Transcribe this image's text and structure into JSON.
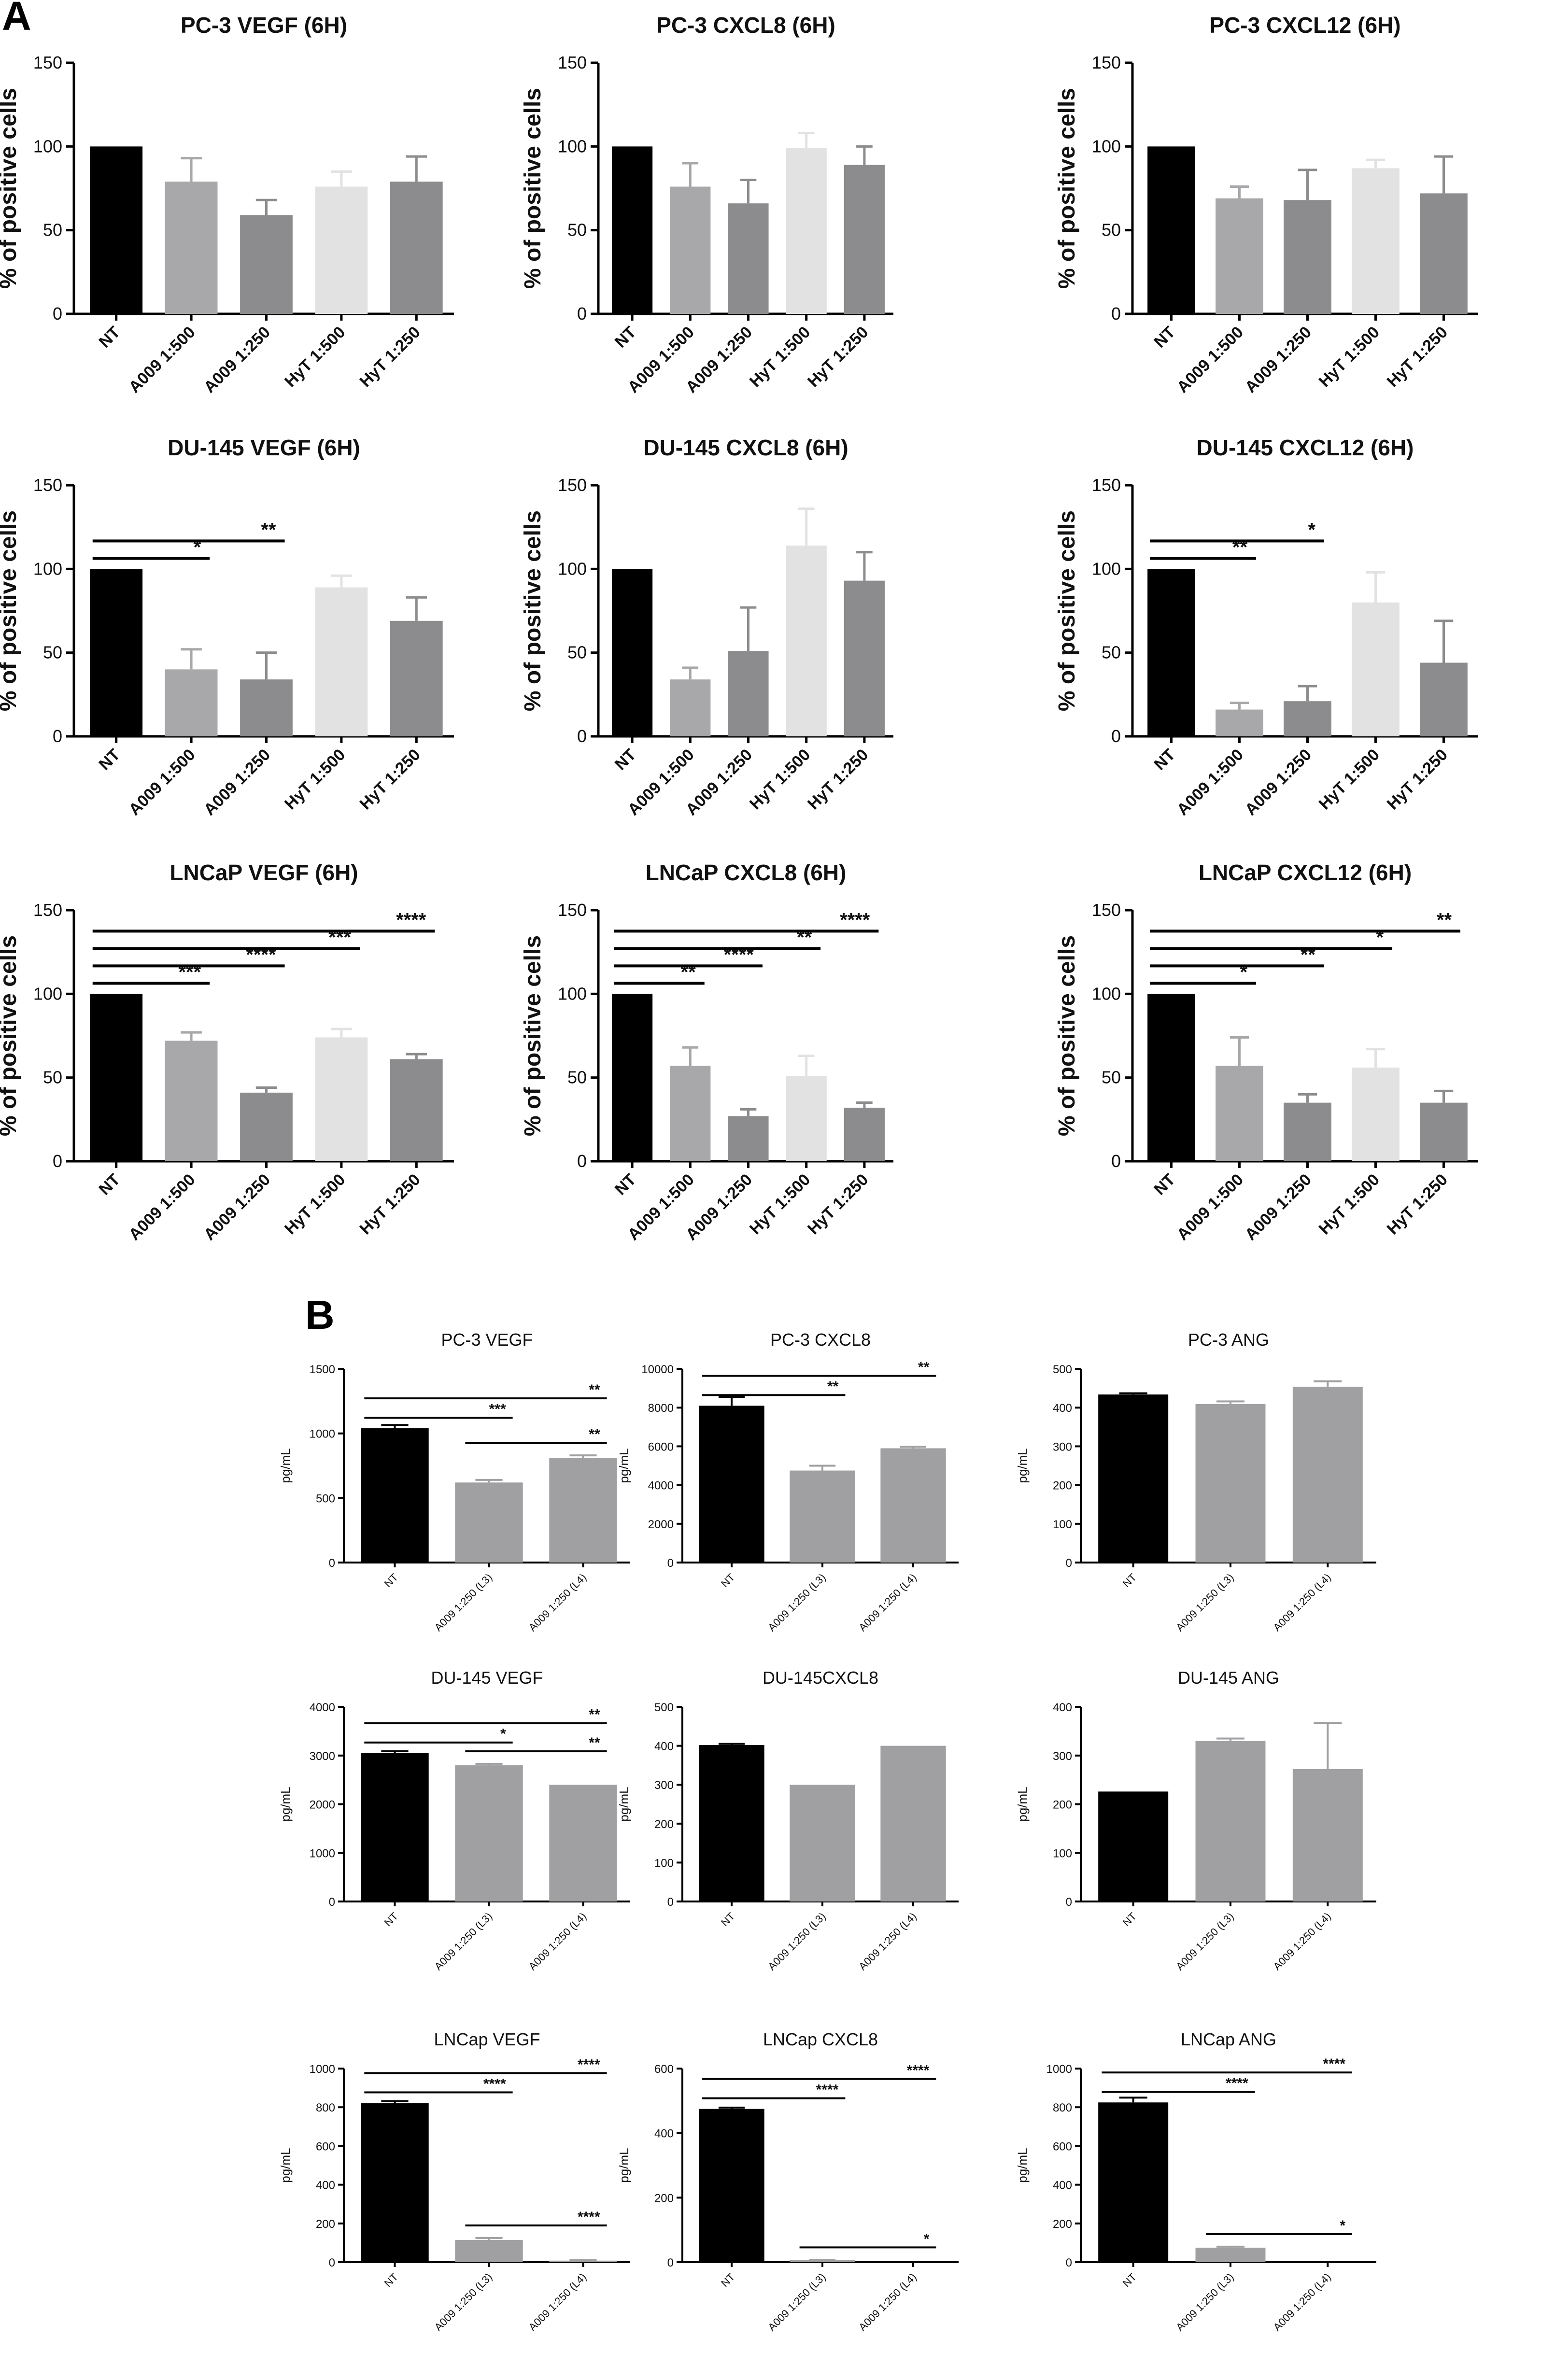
{
  "panel_labels": {
    "a": "A",
    "b": "B"
  },
  "colors": {
    "black": "#000000",
    "gray_mid": "#a8a8aa",
    "gray_dark": "#8c8c8e",
    "gray_light": "#e2e2e2",
    "gray_mid2": "#a0a0a2",
    "axis": "#000000"
  },
  "chart_data": [
    {
      "panel": "A",
      "type": "bar",
      "title": "PC-3 VEGF (6H)",
      "ylabel": "% of positive cells",
      "xlabel": "",
      "ylim": [
        0,
        150
      ],
      "yticks": [
        0,
        50,
        100,
        150
      ],
      "categories": [
        "NT",
        "A009 1:500",
        "A009 1:250",
        "HyT 1:500",
        "HyT 1:250"
      ],
      "values": [
        100,
        79,
        59,
        76,
        79
      ],
      "errors": [
        0,
        14,
        9,
        9,
        15
      ],
      "significance": []
    },
    {
      "panel": "A",
      "type": "bar",
      "title": "PC-3 CXCL8 (6H)",
      "ylabel": "% of positive cells",
      "xlabel": "",
      "ylim": [
        0,
        150
      ],
      "yticks": [
        0,
        50,
        100,
        150
      ],
      "categories": [
        "NT",
        "A009 1:500",
        "A009 1:250",
        "HyT 1:500",
        "HyT 1:250"
      ],
      "values": [
        100,
        76,
        66,
        99,
        89
      ],
      "errors": [
        0,
        14,
        14,
        9,
        11
      ],
      "significance": []
    },
    {
      "panel": "A",
      "type": "bar",
      "title": "PC-3 CXCL12 (6H)",
      "ylabel": "% of positive cells",
      "xlabel": "",
      "ylim": [
        0,
        150
      ],
      "yticks": [
        0,
        50,
        100,
        150
      ],
      "categories": [
        "NT",
        "A009 1:500",
        "A009 1:250",
        "HyT 1:500",
        "HyT 1:250"
      ],
      "values": [
        100,
        69,
        68,
        87,
        72
      ],
      "errors": [
        0,
        7,
        18,
        5,
        22
      ],
      "significance": []
    },
    {
      "panel": "A",
      "type": "bar",
      "title": "DU-145 VEGF (6H)",
      "ylabel": "% of positive cells",
      "xlabel": "",
      "ylim": [
        0,
        150
      ],
      "yticks": [
        0,
        50,
        100,
        150
      ],
      "categories": [
        "NT",
        "A009 1:500",
        "A009 1:250",
        "HyT 1:500",
        "HyT 1:250"
      ],
      "values": [
        100,
        40,
        34,
        89,
        69
      ],
      "errors": [
        0,
        12,
        16,
        7,
        14
      ],
      "significance": [
        {
          "from": 0,
          "to": 1,
          "label": "*"
        },
        {
          "from": 0,
          "to": 2,
          "label": "**"
        }
      ]
    },
    {
      "panel": "A",
      "type": "bar",
      "title": "DU-145 CXCL8 (6H)",
      "ylabel": "% of positive cells",
      "xlabel": "",
      "ylim": [
        0,
        150
      ],
      "yticks": [
        0,
        50,
        100,
        150
      ],
      "categories": [
        "NT",
        "A009 1:500",
        "A009 1:250",
        "HyT 1:500",
        "HyT 1:250"
      ],
      "values": [
        100,
        34,
        51,
        114,
        93
      ],
      "errors": [
        0,
        7,
        26,
        22,
        17
      ],
      "significance": []
    },
    {
      "panel": "A",
      "type": "bar",
      "title": "DU-145 CXCL12 (6H)",
      "ylabel": "% of positive cells",
      "xlabel": "",
      "ylim": [
        0,
        150
      ],
      "yticks": [
        0,
        50,
        100,
        150
      ],
      "categories": [
        "NT",
        "A009 1:500",
        "A009 1:250",
        "HyT 1:500",
        "HyT 1:250"
      ],
      "values": [
        100,
        16,
        21,
        80,
        44
      ],
      "errors": [
        0,
        4,
        9,
        18,
        25
      ],
      "significance": [
        {
          "from": 0,
          "to": 1,
          "label": "**"
        },
        {
          "from": 0,
          "to": 2,
          "label": "*"
        }
      ]
    },
    {
      "panel": "A",
      "type": "bar",
      "title": "LNCaP VEGF (6H)",
      "ylabel": "% of positive cells",
      "xlabel": "",
      "ylim": [
        0,
        150
      ],
      "yticks": [
        0,
        50,
        100,
        150
      ],
      "categories": [
        "NT",
        "A009 1:500",
        "A009 1:250",
        "HyT 1:500",
        "HyT 1:250"
      ],
      "values": [
        100,
        72,
        41,
        74,
        61
      ],
      "errors": [
        0,
        5,
        3,
        5,
        3
      ],
      "significance": [
        {
          "from": 0,
          "to": 1,
          "label": "***"
        },
        {
          "from": 0,
          "to": 2,
          "label": "****"
        },
        {
          "from": 0,
          "to": 3,
          "label": "***"
        },
        {
          "from": 0,
          "to": 4,
          "label": "****"
        }
      ]
    },
    {
      "panel": "A",
      "type": "bar",
      "title": "LNCaP CXCL8 (6H)",
      "ylabel": "% of positive cells",
      "xlabel": "",
      "ylim": [
        0,
        150
      ],
      "yticks": [
        0,
        50,
        100,
        150
      ],
      "categories": [
        "NT",
        "A009 1:500",
        "A009 1:250",
        "HyT 1:500",
        "HyT 1:250"
      ],
      "values": [
        100,
        57,
        27,
        51,
        32
      ],
      "errors": [
        0,
        11,
        4,
        12,
        3
      ],
      "significance": [
        {
          "from": 0,
          "to": 1,
          "label": "**"
        },
        {
          "from": 0,
          "to": 2,
          "label": "****"
        },
        {
          "from": 0,
          "to": 3,
          "label": "**"
        },
        {
          "from": 0,
          "to": 4,
          "label": "****"
        }
      ]
    },
    {
      "panel": "A",
      "type": "bar",
      "title": "LNCaP CXCL12 (6H)",
      "ylabel": "% of positive cells",
      "xlabel": "",
      "ylim": [
        0,
        150
      ],
      "yticks": [
        0,
        50,
        100,
        150
      ],
      "categories": [
        "NT",
        "A009 1:500",
        "A009 1:250",
        "HyT 1:500",
        "HyT 1:250"
      ],
      "values": [
        100,
        57,
        35,
        56,
        35
      ],
      "errors": [
        0,
        17,
        5,
        11,
        7
      ],
      "significance": [
        {
          "from": 0,
          "to": 1,
          "label": "*"
        },
        {
          "from": 0,
          "to": 2,
          "label": "**"
        },
        {
          "from": 0,
          "to": 3,
          "label": "*"
        },
        {
          "from": 0,
          "to": 4,
          "label": "**"
        }
      ]
    },
    {
      "panel": "B",
      "type": "bar",
      "title": "PC-3  VEGF",
      "ylabel": "pg/mL",
      "xlabel": "",
      "ylim": [
        0,
        1500
      ],
      "yticks": [
        0,
        500,
        1000,
        1500
      ],
      "categories": [
        "NT",
        "A009 1:250 (L3)",
        "A009 1:250 (L4)"
      ],
      "values": [
        1040,
        620,
        810
      ],
      "errors": [
        25,
        20,
        20
      ],
      "significance": [
        {
          "from": 0,
          "to": 1,
          "label": "***"
        },
        {
          "from": 0,
          "to": 2,
          "label": "**"
        },
        {
          "from": 1,
          "to": 2,
          "label": "**"
        }
      ]
    },
    {
      "panel": "B",
      "type": "bar",
      "title": "PC-3  CXCL8",
      "ylabel": "pg/mL",
      "xlabel": "",
      "ylim": [
        0,
        10000
      ],
      "yticks": [
        0,
        2000,
        4000,
        6000,
        8000,
        10000
      ],
      "categories": [
        "NT",
        "A009 1:250 (L3)",
        "A009 1:250 (L4)"
      ],
      "values": [
        8100,
        4750,
        5900
      ],
      "errors": [
        450,
        250,
        80
      ],
      "significance": [
        {
          "from": 0,
          "to": 1,
          "label": "**"
        },
        {
          "from": 0,
          "to": 2,
          "label": "**"
        }
      ]
    },
    {
      "panel": "B",
      "type": "bar",
      "title": "PC-3  ANG",
      "ylabel": "pg/mL",
      "xlabel": "",
      "ylim": [
        0,
        500
      ],
      "yticks": [
        0,
        100,
        200,
        300,
        400,
        500
      ],
      "categories": [
        "NT",
        "A009 1:250 (L3)",
        "A009 1:250 (L4)"
      ],
      "values": [
        434,
        409,
        454
      ],
      "errors": [
        3,
        7,
        14
      ],
      "significance": []
    },
    {
      "panel": "B",
      "type": "bar",
      "title": "DU-145  VEGF",
      "ylabel": "pg/mL",
      "xlabel": "",
      "ylim": [
        0,
        4000
      ],
      "yticks": [
        0,
        1000,
        2000,
        3000,
        4000
      ],
      "categories": [
        "NT",
        "A009 1:250 (L3)",
        "A009 1:250 (L4)"
      ],
      "values": [
        3050,
        2800,
        2400
      ],
      "errors": [
        40,
        30,
        0
      ],
      "significance": [
        {
          "from": 0,
          "to": 1,
          "label": "*"
        },
        {
          "from": 0,
          "to": 2,
          "label": "**"
        },
        {
          "from": 1,
          "to": 2,
          "label": "**"
        }
      ]
    },
    {
      "panel": "B",
      "type": "bar",
      "title": "DU-145CXCL8",
      "ylabel": "pg/mL",
      "xlabel": "",
      "ylim": [
        0,
        500
      ],
      "yticks": [
        0,
        100,
        200,
        300,
        400,
        500
      ],
      "categories": [
        "NT",
        "A009 1:250 (L3)",
        "A009 1:250 (L4)"
      ],
      "values": [
        402,
        300,
        400
      ],
      "errors": [
        3,
        0,
        0
      ],
      "significance": []
    },
    {
      "panel": "B",
      "type": "bar",
      "title": "DU-145  ANG",
      "ylabel": "pg/mL",
      "xlabel": "",
      "ylim": [
        0,
        400
      ],
      "yticks": [
        0,
        100,
        200,
        300,
        400
      ],
      "categories": [
        "NT",
        "A009 1:250 (L3)",
        "A009 1:250 (L4)"
      ],
      "values": [
        226,
        330,
        272
      ],
      "errors": [
        0,
        5,
        95
      ],
      "significance": []
    },
    {
      "panel": "B",
      "type": "bar",
      "title": "LNCap  VEGF",
      "ylabel": "pg/mL",
      "xlabel": "",
      "ylim": [
        0,
        1000
      ],
      "yticks": [
        0,
        200,
        400,
        600,
        800,
        1000
      ],
      "categories": [
        "NT",
        "A009 1:250 (L3)",
        "A009 1:250 (L4)"
      ],
      "values": [
        822,
        115,
        8
      ],
      "errors": [
        10,
        10,
        2
      ],
      "significance": [
        {
          "from": 0,
          "to": 1,
          "label": "****"
        },
        {
          "from": 0,
          "to": 2,
          "label": "****"
        },
        {
          "from": 1,
          "to": 2,
          "label": "****"
        }
      ]
    },
    {
      "panel": "B",
      "type": "bar",
      "title": "LNCap  CXCL8",
      "ylabel": "pg/mL",
      "xlabel": "",
      "ylim": [
        0,
        600
      ],
      "yticks": [
        0,
        200,
        400,
        600
      ],
      "categories": [
        "NT",
        "A009 1:250 (L3)",
        "A009 1:250 (L4)"
      ],
      "values": [
        475,
        6,
        0
      ],
      "errors": [
        4,
        1,
        0
      ],
      "significance": [
        {
          "from": 0,
          "to": 1,
          "label": "****"
        },
        {
          "from": 0,
          "to": 2,
          "label": "****"
        },
        {
          "from": 1,
          "to": 2,
          "label": "*"
        }
      ]
    },
    {
      "panel": "B",
      "type": "bar",
      "title": "LNCap  ANG",
      "ylabel": "pg/mL",
      "xlabel": "",
      "ylim": [
        0,
        1000
      ],
      "yticks": [
        0,
        200,
        400,
        600,
        800,
        1000
      ],
      "categories": [
        "NT",
        "A009 1:250 (L3)",
        "A009 1:250 (L4)"
      ],
      "values": [
        825,
        75,
        0
      ],
      "errors": [
        25,
        5,
        0
      ],
      "significance": [
        {
          "from": 0,
          "to": 1,
          "label": "****"
        },
        {
          "from": 0,
          "to": 2,
          "label": "****"
        },
        {
          "from": 1,
          "to": 2,
          "label": "*"
        }
      ]
    }
  ]
}
